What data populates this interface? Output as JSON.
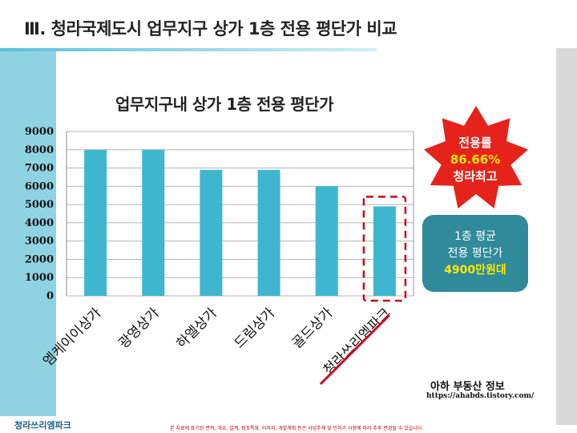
{
  "slide": {
    "title": "Ⅲ. 청라국제도시 업무지구 상가 1층 전용 평단가 비교",
    "footer_logo": "청라쓰리엠파크",
    "footer_note": "본 자료에 표기된 면적, 개요, 설계, 점포특화, 이미지, 개발계획 등은 사업주체 및 인허가 사정에 따라 추후 변경될 수 있습니다.",
    "brand_name": "아하 부동산 정보",
    "brand_url": "https://ahabds.tistory.com/"
  },
  "callouts": {
    "burst": {
      "line1": "전용률",
      "line2": "86.66%",
      "line3": "청라최고"
    },
    "box": {
      "line1": "1층 평균",
      "line2": "전용 평단가",
      "line3": "4900만원대"
    }
  },
  "colors": {
    "bar": "#3fb6cf",
    "burst": "#e5231b",
    "box": "#2f8a9a",
    "highlight": "#ffe600",
    "dashed": "#d0021b"
  },
  "chart_data": {
    "type": "bar",
    "title": "업무지구내 상가 1층 전용 평단가",
    "categories": [
      "엠케이이상가",
      "광영상가",
      "하엘상가",
      "드림상가",
      "골드상가",
      "청라쓰리엠파크"
    ],
    "values": [
      8000,
      8000,
      6900,
      6900,
      6000,
      4900
    ],
    "ylim": [
      0,
      9000
    ],
    "yticks": [
      "9000",
      "8000",
      "7000",
      "6000",
      "5000",
      "4000",
      "3000",
      "2000",
      "1000",
      "0"
    ],
    "grid": true,
    "legend": "none",
    "highlighted_category": "청라쓰리엠파크"
  }
}
